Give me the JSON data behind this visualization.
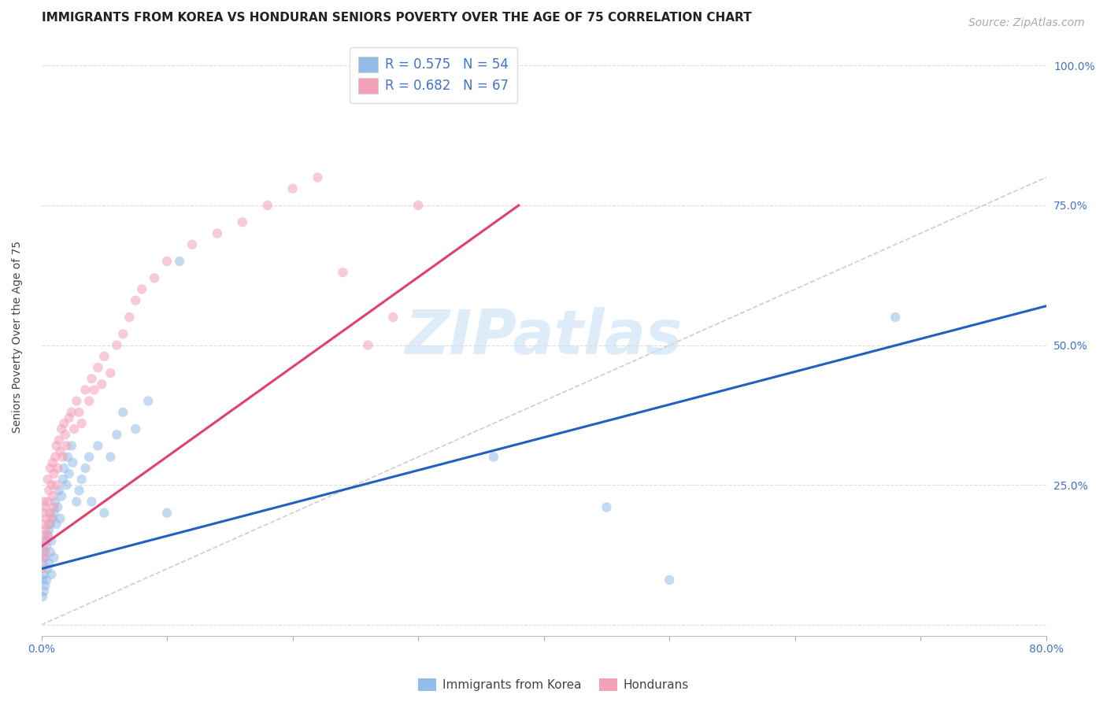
{
  "title": "IMMIGRANTS FROM KOREA VS HONDURAN SENIORS POVERTY OVER THE AGE OF 75 CORRELATION CHART",
  "source": "Source: ZipAtlas.com",
  "ylabel": "Seniors Poverty Over the Age of 75",
  "xlim": [
    0.0,
    0.8
  ],
  "ylim": [
    -0.02,
    1.05
  ],
  "korea_color": "#93bce8",
  "korea_color_line": "#2060c0",
  "honduran_color": "#f4a0b8",
  "honduran_color_line": "#e04070",
  "diagonal_color": "#c8c8c8",
  "legend_korea_label": "Immigrants from Korea",
  "legend_honduran_label": "Hondurans",
  "legend_korea_R": "R = 0.575",
  "legend_korea_N": "N = 54",
  "legend_honduran_R": "R = 0.682",
  "legend_honduran_N": "N = 67",
  "watermark": "ZIPatlas",
  "korea_x": [
    0.001,
    0.001,
    0.001,
    0.002,
    0.002,
    0.002,
    0.003,
    0.003,
    0.003,
    0.004,
    0.004,
    0.005,
    0.005,
    0.006,
    0.006,
    0.007,
    0.007,
    0.008,
    0.008,
    0.009,
    0.01,
    0.01,
    0.011,
    0.012,
    0.013,
    0.014,
    0.015,
    0.016,
    0.017,
    0.018,
    0.02,
    0.021,
    0.022,
    0.024,
    0.025,
    0.028,
    0.03,
    0.032,
    0.035,
    0.038,
    0.04,
    0.045,
    0.05,
    0.055,
    0.06,
    0.065,
    0.075,
    0.085,
    0.1,
    0.11,
    0.36,
    0.45,
    0.5,
    0.68
  ],
  "korea_y": [
    0.05,
    0.08,
    0.11,
    0.06,
    0.09,
    0.13,
    0.07,
    0.12,
    0.15,
    0.08,
    0.14,
    0.1,
    0.16,
    0.11,
    0.17,
    0.13,
    0.18,
    0.09,
    0.15,
    0.19,
    0.12,
    0.2,
    0.22,
    0.18,
    0.21,
    0.24,
    0.19,
    0.23,
    0.26,
    0.28,
    0.25,
    0.3,
    0.27,
    0.32,
    0.29,
    0.22,
    0.24,
    0.26,
    0.28,
    0.3,
    0.22,
    0.32,
    0.2,
    0.3,
    0.34,
    0.38,
    0.35,
    0.4,
    0.2,
    0.65,
    0.3,
    0.21,
    0.08,
    0.55
  ],
  "honduran_x": [
    0.001,
    0.001,
    0.001,
    0.002,
    0.002,
    0.002,
    0.002,
    0.003,
    0.003,
    0.003,
    0.004,
    0.004,
    0.005,
    0.005,
    0.005,
    0.006,
    0.006,
    0.007,
    0.007,
    0.008,
    0.008,
    0.009,
    0.009,
    0.01,
    0.01,
    0.011,
    0.012,
    0.012,
    0.013,
    0.014,
    0.015,
    0.016,
    0.017,
    0.018,
    0.019,
    0.02,
    0.022,
    0.024,
    0.026,
    0.028,
    0.03,
    0.032,
    0.035,
    0.038,
    0.04,
    0.042,
    0.045,
    0.048,
    0.05,
    0.055,
    0.06,
    0.065,
    0.07,
    0.075,
    0.08,
    0.09,
    0.1,
    0.12,
    0.14,
    0.16,
    0.18,
    0.2,
    0.22,
    0.24,
    0.26,
    0.28,
    0.3
  ],
  "honduran_y": [
    0.1,
    0.14,
    0.18,
    0.12,
    0.16,
    0.2,
    0.22,
    0.13,
    0.17,
    0.21,
    0.15,
    0.19,
    0.16,
    0.22,
    0.26,
    0.18,
    0.24,
    0.2,
    0.28,
    0.19,
    0.25,
    0.23,
    0.29,
    0.21,
    0.27,
    0.3,
    0.25,
    0.32,
    0.28,
    0.33,
    0.31,
    0.35,
    0.3,
    0.36,
    0.34,
    0.32,
    0.37,
    0.38,
    0.35,
    0.4,
    0.38,
    0.36,
    0.42,
    0.4,
    0.44,
    0.42,
    0.46,
    0.43,
    0.48,
    0.45,
    0.5,
    0.52,
    0.55,
    0.58,
    0.6,
    0.62,
    0.65,
    0.68,
    0.7,
    0.72,
    0.75,
    0.78,
    0.8,
    0.63,
    0.5,
    0.55,
    0.75
  ],
  "background_color": "#ffffff",
  "grid_color": "#dddddd",
  "title_fontsize": 11,
  "axis_label_fontsize": 10,
  "tick_fontsize": 10,
  "legend_fontsize": 12,
  "source_fontsize": 10,
  "marker_size": 80,
  "marker_alpha": 0.55,
  "line_width": 2.2,
  "korea_line_x0": 0.0,
  "korea_line_x1": 0.8,
  "korea_line_y0": 0.1,
  "korea_line_y1": 0.57,
  "honduran_line_x0": 0.0,
  "honduran_line_x1": 0.38,
  "honduran_line_y0": 0.14,
  "honduran_line_y1": 0.75
}
